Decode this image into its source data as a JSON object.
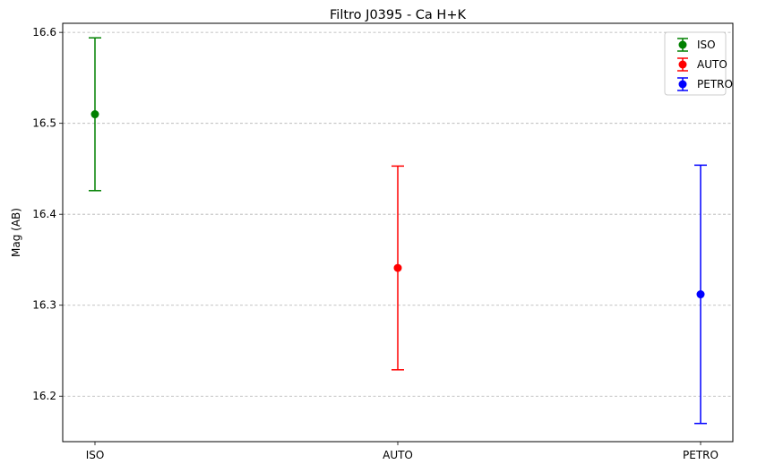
{
  "chart_data": {
    "type": "scatter",
    "title": "Filtro J0395 - Ca H+K",
    "xlabel": "",
    "ylabel": "Mag (AB)",
    "categories": [
      "ISO",
      "AUTO",
      "PETRO"
    ],
    "ylim": [
      16.15,
      16.61
    ],
    "yticks": [
      16.2,
      16.3,
      16.4,
      16.5,
      16.6
    ],
    "grid": "y-dashed",
    "legend_position": "top-right",
    "series": [
      {
        "name": "ISO",
        "color": "#008000",
        "x": "ISO",
        "y": 16.51,
        "yerr_low": 16.426,
        "yerr_high": 16.594
      },
      {
        "name": "AUTO",
        "color": "#ff0000",
        "x": "AUTO",
        "y": 16.341,
        "yerr_low": 16.229,
        "yerr_high": 16.453
      },
      {
        "name": "PETRO",
        "color": "#0000ff",
        "x": "PETRO",
        "y": 16.312,
        "yerr_low": 16.17,
        "yerr_high": 16.454
      }
    ]
  }
}
